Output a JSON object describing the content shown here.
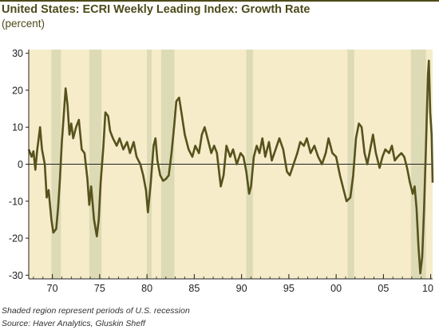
{
  "header": {
    "title": "United States: ECRI Weekly Leading Index: Growth Rate",
    "subtitle": "(percent)"
  },
  "notes": {
    "shading": "Shaded region represent periods of U.S. recession",
    "source": "Source: Haver Analytics, Gluskin Sheff"
  },
  "colors": {
    "line": "#56521c",
    "plot_bg": "#f6ecca",
    "recession": "#dcdbb5"
  },
  "chart_data": {
    "type": "line",
    "title": "United States: ECRI Weekly Leading Index: Growth Rate",
    "ylabel": "(percent)",
    "xlim": [
      1967.5,
      2010.2
    ],
    "ylim": [
      -31,
      31
    ],
    "yticks": [
      30,
      20,
      10,
      0,
      -10,
      -20,
      -30
    ],
    "xticks": [
      {
        "x": 1970,
        "label": "70"
      },
      {
        "x": 1975,
        "label": "75"
      },
      {
        "x": 1980,
        "label": "80"
      },
      {
        "x": 1985,
        "label": "85"
      },
      {
        "x": 1990,
        "label": "90"
      },
      {
        "x": 1995,
        "label": "95"
      },
      {
        "x": 2000,
        "label": "00"
      },
      {
        "x": 2005,
        "label": "05"
      },
      {
        "x": 2010,
        "label": "10"
      }
    ],
    "recessions": [
      [
        1969.9,
        1970.9
      ],
      [
        1973.9,
        1975.2
      ],
      [
        1980.0,
        1980.5
      ],
      [
        1981.5,
        1982.9
      ],
      [
        1990.5,
        1991.2
      ],
      [
        2001.2,
        2001.9
      ],
      [
        2007.9,
        2009.5
      ]
    ],
    "grid": false,
    "series": [
      {
        "values": [
          [
            1967.5,
            4
          ],
          [
            1967.8,
            2
          ],
          [
            1968.0,
            3.5
          ],
          [
            1968.2,
            -1.5
          ],
          [
            1968.4,
            4
          ],
          [
            1968.7,
            10
          ],
          [
            1968.9,
            4
          ],
          [
            1969.2,
            0
          ],
          [
            1969.4,
            -9
          ],
          [
            1969.6,
            -7
          ],
          [
            1969.9,
            -15
          ],
          [
            1970.1,
            -18.5
          ],
          [
            1970.4,
            -17.5
          ],
          [
            1970.6,
            -12
          ],
          [
            1970.8,
            -4
          ],
          [
            1971.0,
            6
          ],
          [
            1971.2,
            13
          ],
          [
            1971.4,
            20.5
          ],
          [
            1971.6,
            16
          ],
          [
            1971.8,
            8
          ],
          [
            1972.0,
            11
          ],
          [
            1972.2,
            7
          ],
          [
            1972.5,
            10
          ],
          [
            1972.8,
            12
          ],
          [
            1973.1,
            4
          ],
          [
            1973.4,
            3
          ],
          [
            1973.7,
            -4
          ],
          [
            1973.9,
            -11
          ],
          [
            1974.1,
            -6
          ],
          [
            1974.4,
            -15
          ],
          [
            1974.7,
            -19.5
          ],
          [
            1974.9,
            -15
          ],
          [
            1975.1,
            -5
          ],
          [
            1975.4,
            5
          ],
          [
            1975.6,
            14
          ],
          [
            1975.9,
            13
          ],
          [
            1976.1,
            9
          ],
          [
            1976.4,
            7
          ],
          [
            1976.8,
            5
          ],
          [
            1977.1,
            7
          ],
          [
            1977.5,
            4
          ],
          [
            1977.9,
            6
          ],
          [
            1978.2,
            3
          ],
          [
            1978.6,
            6
          ],
          [
            1978.9,
            2
          ],
          [
            1979.3,
            0
          ],
          [
            1979.6,
            -3
          ],
          [
            1979.9,
            -7
          ],
          [
            1980.1,
            -13
          ],
          [
            1980.4,
            -5
          ],
          [
            1980.7,
            5
          ],
          [
            1980.9,
            7
          ],
          [
            1981.1,
            1
          ],
          [
            1981.4,
            -3
          ],
          [
            1981.7,
            -4.5
          ],
          [
            1982.0,
            -4
          ],
          [
            1982.3,
            -3
          ],
          [
            1982.6,
            3
          ],
          [
            1982.9,
            11
          ],
          [
            1983.1,
            17
          ],
          [
            1983.4,
            18
          ],
          [
            1983.7,
            13
          ],
          [
            1984.0,
            8
          ],
          [
            1984.4,
            4
          ],
          [
            1984.8,
            2
          ],
          [
            1985.1,
            5
          ],
          [
            1985.5,
            3
          ],
          [
            1985.8,
            8
          ],
          [
            1986.1,
            10
          ],
          [
            1986.4,
            7
          ],
          [
            1986.8,
            3
          ],
          [
            1987.1,
            5
          ],
          [
            1987.4,
            3
          ],
          [
            1987.8,
            -6
          ],
          [
            1988.1,
            -3
          ],
          [
            1988.4,
            5
          ],
          [
            1988.8,
            2
          ],
          [
            1989.1,
            4
          ],
          [
            1989.5,
            0
          ],
          [
            1989.9,
            3
          ],
          [
            1990.2,
            2
          ],
          [
            1990.5,
            -2
          ],
          [
            1990.8,
            -8
          ],
          [
            1991.0,
            -6
          ],
          [
            1991.3,
            2
          ],
          [
            1991.6,
            5
          ],
          [
            1991.9,
            3
          ],
          [
            1992.2,
            7
          ],
          [
            1992.5,
            2
          ],
          [
            1992.9,
            6
          ],
          [
            1993.2,
            1
          ],
          [
            1993.6,
            4
          ],
          [
            1994.0,
            7
          ],
          [
            1994.4,
            4
          ],
          [
            1994.8,
            -2
          ],
          [
            1995.1,
            -3
          ],
          [
            1995.5,
            0
          ],
          [
            1995.9,
            3
          ],
          [
            1996.2,
            6
          ],
          [
            1996.6,
            5
          ],
          [
            1996.9,
            7
          ],
          [
            1997.3,
            3
          ],
          [
            1997.7,
            5
          ],
          [
            1998.1,
            2
          ],
          [
            1998.5,
            0
          ],
          [
            1998.9,
            3
          ],
          [
            1999.2,
            7
          ],
          [
            1999.6,
            3
          ],
          [
            2000.0,
            2
          ],
          [
            2000.4,
            -3
          ],
          [
            2000.8,
            -7
          ],
          [
            2001.1,
            -10
          ],
          [
            2001.5,
            -9
          ],
          [
            2001.8,
            -3
          ],
          [
            2002.1,
            7
          ],
          [
            2002.4,
            11
          ],
          [
            2002.7,
            10
          ],
          [
            2003.0,
            3
          ],
          [
            2003.3,
            0
          ],
          [
            2003.6,
            4
          ],
          [
            2003.9,
            8
          ],
          [
            2004.2,
            3
          ],
          [
            2004.6,
            -1
          ],
          [
            2004.9,
            2
          ],
          [
            2005.2,
            4
          ],
          [
            2005.6,
            3
          ],
          [
            2005.9,
            5
          ],
          [
            2006.2,
            1
          ],
          [
            2006.5,
            2
          ],
          [
            2006.9,
            3
          ],
          [
            2007.2,
            2
          ],
          [
            2007.5,
            -1
          ],
          [
            2007.8,
            -5
          ],
          [
            2008.1,
            -8
          ],
          [
            2008.3,
            -6
          ],
          [
            2008.5,
            -12
          ],
          [
            2008.7,
            -22
          ],
          [
            2008.9,
            -29.5
          ],
          [
            2009.1,
            -25
          ],
          [
            2009.3,
            -12
          ],
          [
            2009.5,
            5
          ],
          [
            2009.7,
            24
          ],
          [
            2009.8,
            28
          ],
          [
            2009.95,
            14
          ],
          [
            2010.1,
            8
          ],
          [
            2010.2,
            -5
          ]
        ]
      }
    ]
  }
}
